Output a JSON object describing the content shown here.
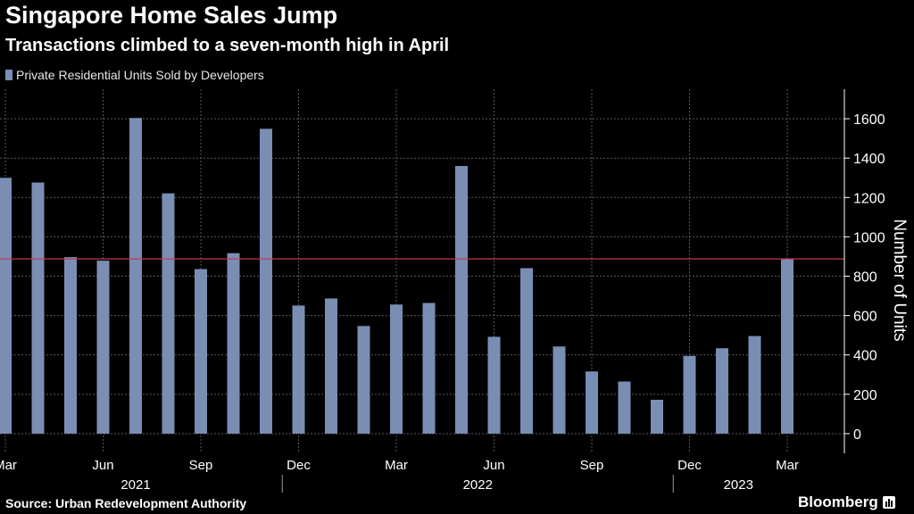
{
  "title": "Singapore Home Sales Jump",
  "subtitle": "Transactions climbed to a seven-month high in April",
  "source": "Source: Urban Redevelopment Authority",
  "brand": "Bloomberg",
  "brand_icon": "bloomberg-bars-icon",
  "colors": {
    "bar": "#7a8eb4",
    "reference_line": "#c8384a",
    "grid": "#5a5a5a",
    "text": "#ffffff",
    "background": "#000000"
  },
  "chart_data": {
    "type": "bar",
    "title": "Singapore Home Sales Jump",
    "subtitle": "Transactions climbed to a seven-month high in April",
    "series": [
      {
        "name": "Private Residential Units Sold by Developers",
        "values": [
          1300,
          1276,
          897,
          879,
          1604,
          1221,
          836,
          917,
          1549,
          651,
          687,
          547,
          656,
          664,
          1360,
          492,
          841,
          443,
          316,
          265,
          172,
          395,
          434,
          496,
          888
        ]
      }
    ],
    "categories": [
      "Mar 2021",
      "Apr 2021",
      "May 2021",
      "Jun 2021",
      "Jul 2021",
      "Aug 2021",
      "Sep 2021",
      "Oct 2021",
      "Nov 2021",
      "Dec 2021",
      "Jan 2022",
      "Feb 2022",
      "Mar 2022",
      "Apr 2022",
      "May 2022",
      "Jun 2022",
      "Jul 2022",
      "Aug 2022",
      "Sep 2022",
      "Oct 2022",
      "Nov 2022",
      "Dec 2022",
      "Jan 2023",
      "Feb 2023",
      "Mar 2023"
    ],
    "reference_line": 888,
    "xtick_labels": [
      {
        "label": "Mar",
        "index": 0
      },
      {
        "label": "Jun",
        "index": 3
      },
      {
        "label": "Sep",
        "index": 6
      },
      {
        "label": "Dec",
        "index": 9
      },
      {
        "label": "Mar",
        "index": 12
      },
      {
        "label": "Jun",
        "index": 15
      },
      {
        "label": "Sep",
        "index": 18
      },
      {
        "label": "Dec",
        "index": 21
      },
      {
        "label": "Mar",
        "index": 24
      }
    ],
    "year_labels": [
      {
        "label": "2021",
        "from": 0,
        "to": 9
      },
      {
        "label": "2022",
        "from": 9,
        "to": 21
      },
      {
        "label": "2023",
        "from": 21,
        "to": 25
      }
    ],
    "ylabel": "Number of Units",
    "ylim": [
      -100,
      1750
    ],
    "yticks": [
      0,
      200,
      400,
      600,
      800,
      1000,
      1200,
      1400,
      1600
    ],
    "grid": true,
    "legend_position": "top-left"
  }
}
